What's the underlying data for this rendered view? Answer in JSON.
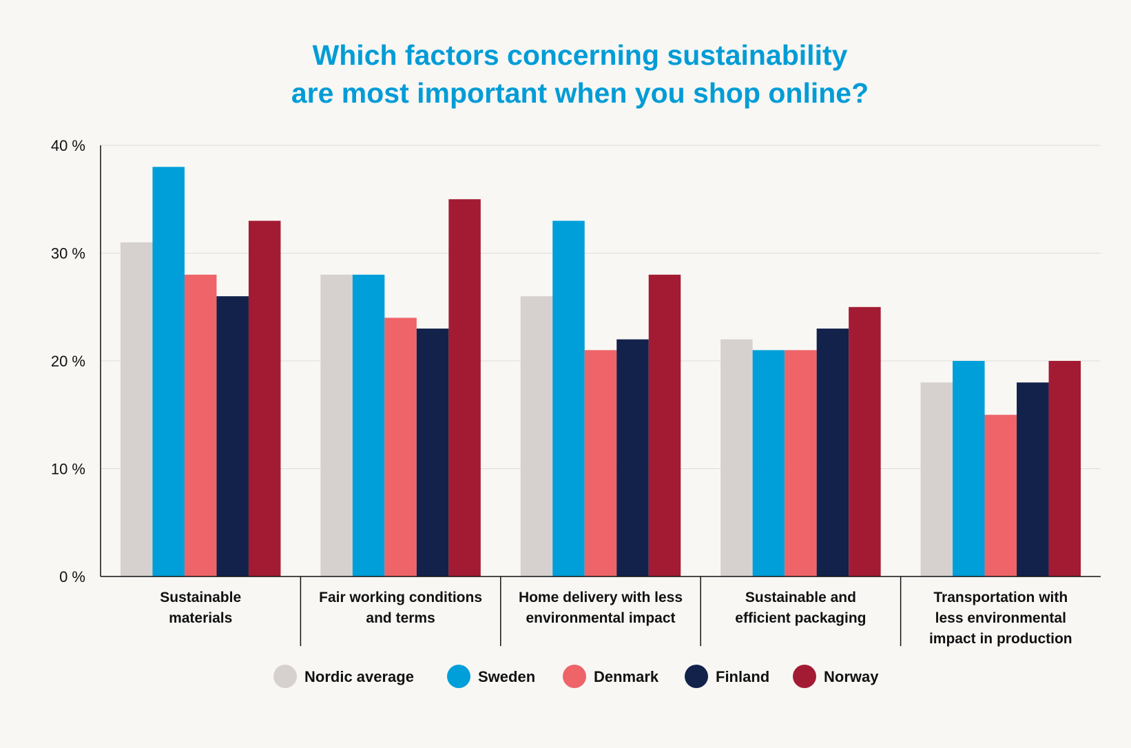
{
  "chart_data": {
    "type": "bar",
    "title": [
      "Which factors concerning sustainability",
      "are most important when you shop online?"
    ],
    "xlabel": "",
    "ylabel": "",
    "ylim": [
      0,
      40
    ],
    "yticks": [
      {
        "value": 0,
        "label": "0 %"
      },
      {
        "value": 10,
        "label": "10 %"
      },
      {
        "value": 20,
        "label": "20 %"
      },
      {
        "value": 30,
        "label": "30 %"
      },
      {
        "value": 40,
        "label": "40 %"
      }
    ],
    "grid": true,
    "legend_position": "bottom-center",
    "categories": [
      [
        "Sustainable",
        "materials"
      ],
      [
        "Fair working conditions",
        "and terms"
      ],
      [
        "Home delivery with less",
        "environmental impact"
      ],
      [
        "Sustainable and",
        "efficient packaging"
      ],
      [
        "Transportation with",
        "less environmental",
        "impact in production"
      ]
    ],
    "series": [
      {
        "name": "Nordic average",
        "color": "#d6d1ce",
        "values": [
          31,
          28,
          26,
          22,
          18
        ]
      },
      {
        "name": "Sweden",
        "color": "#009fd9",
        "values": [
          38,
          28,
          33,
          21,
          20
        ]
      },
      {
        "name": "Denmark",
        "color": "#ee6468",
        "values": [
          28,
          24,
          21,
          21,
          15
        ]
      },
      {
        "name": "Finland",
        "color": "#12224b",
        "values": [
          26,
          23,
          22,
          23,
          18
        ]
      },
      {
        "name": "Norway",
        "color": "#a31b33",
        "values": [
          33,
          35,
          28,
          25,
          20
        ]
      }
    ]
  }
}
